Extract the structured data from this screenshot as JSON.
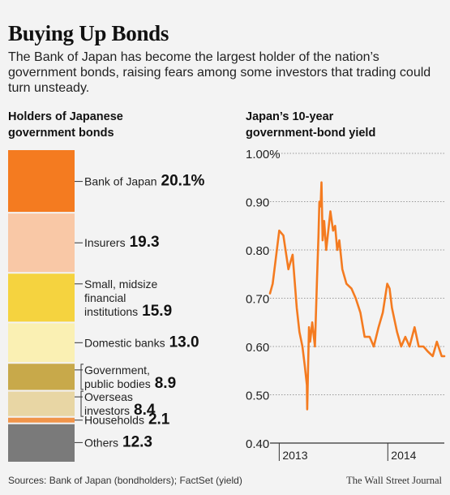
{
  "title": "Buying Up Bonds",
  "subtitle": "The Bank of Japan has become the largest holder of the nation’s government bonds, raising fears among some investors that trading could turn unsteady.",
  "footer": {
    "sources": "Sources: Bank of Japan (bondholders); FactSet (yield)",
    "publisher": "The Wall Street Journal"
  },
  "chart_data": [
    {
      "type": "bar",
      "subtype": "stacked-100",
      "title_lines": [
        "Holders of Japanese",
        "government bonds"
      ],
      "unit": "%",
      "segments": [
        {
          "label_lines": [
            "Bank of Japan"
          ],
          "value": 20.1,
          "value_label": "20.1%",
          "color": "#f47b20"
        },
        {
          "label_lines": [
            "Insurers"
          ],
          "value": 19.3,
          "value_label": "19.3",
          "color": "#f9c8a6"
        },
        {
          "label_lines": [
            "Small, midsize",
            "financial",
            "institutions"
          ],
          "value": 15.9,
          "value_label": "15.9",
          "color": "#f5d33f"
        },
        {
          "label_lines": [
            "Domestic banks"
          ],
          "value": 13.0,
          "value_label": "13.0",
          "color": "#faf0b3"
        },
        {
          "label_lines": [
            "Government,",
            "public bodies"
          ],
          "value": 8.9,
          "value_label": "8.9",
          "color": "#c8a94a"
        },
        {
          "label_lines": [
            "Overseas",
            "investors"
          ],
          "value": 8.4,
          "value_label": "8.4",
          "color": "#e8d6a4"
        },
        {
          "label_lines": [
            "Households"
          ],
          "value": 2.1,
          "value_label": "2.1",
          "color": "#f0944a"
        },
        {
          "label_lines": [
            "Others"
          ],
          "value": 12.3,
          "value_label": "12.3",
          "color": "#7a7a7a"
        }
      ]
    },
    {
      "type": "line",
      "title_lines": [
        "Japan’s 10-year",
        "government-bond yield"
      ],
      "ylim": [
        0.4,
        1.0
      ],
      "yticks": [
        0.4,
        0.5,
        0.6,
        0.7,
        0.8,
        0.9,
        1.0
      ],
      "ytick_labels": [
        "0.40",
        "0.50",
        "0.60",
        "0.70",
        "0.80",
        "0.90",
        "1.00%"
      ],
      "grid": "horizontal",
      "xlim": [
        "2012-12-01",
        "2014-07-10"
      ],
      "xticks": [
        "2013-01-01",
        "2014-01-01"
      ],
      "xtick_labels": [
        "2013",
        "2014"
      ],
      "line_color": "#f47b20",
      "series": [
        {
          "x": [
            "2012-12-01",
            "2012-12-10",
            "2012-12-20",
            "2013-01-01",
            "2013-01-15",
            "2013-02-01",
            "2013-02-15",
            "2013-03-01",
            "2013-03-10",
            "2013-03-20",
            "2013-03-28",
            "2013-04-04",
            "2013-04-05",
            "2013-04-08",
            "2013-04-11",
            "2013-04-15",
            "2013-04-22",
            "2013-05-01",
            "2013-05-08",
            "2013-05-13",
            "2013-05-16",
            "2013-05-20",
            "2013-05-23",
            "2013-05-27",
            "2013-06-01",
            "2013-06-08",
            "2013-06-15",
            "2013-06-22",
            "2013-07-01",
            "2013-07-08",
            "2013-07-15",
            "2013-07-22",
            "2013-08-01",
            "2013-08-15",
            "2013-09-01",
            "2013-09-15",
            "2013-10-01",
            "2013-10-15",
            "2013-11-01",
            "2013-11-15",
            "2013-12-01",
            "2013-12-15",
            "2013-12-30",
            "2014-01-07",
            "2014-01-15",
            "2014-02-01",
            "2014-02-15",
            "2014-03-01",
            "2014-03-15",
            "2014-04-01",
            "2014-04-15",
            "2014-05-01",
            "2014-05-15",
            "2014-06-01",
            "2014-06-15",
            "2014-07-01",
            "2014-07-10"
          ],
          "y": [
            0.71,
            0.73,
            0.78,
            0.84,
            0.83,
            0.76,
            0.79,
            0.68,
            0.63,
            0.6,
            0.56,
            0.52,
            0.47,
            0.56,
            0.64,
            0.61,
            0.65,
            0.6,
            0.74,
            0.83,
            0.9,
            0.89,
            0.94,
            0.82,
            0.86,
            0.8,
            0.84,
            0.88,
            0.84,
            0.85,
            0.8,
            0.82,
            0.76,
            0.73,
            0.72,
            0.7,
            0.67,
            0.62,
            0.62,
            0.6,
            0.64,
            0.67,
            0.73,
            0.72,
            0.68,
            0.63,
            0.6,
            0.62,
            0.6,
            0.64,
            0.6,
            0.6,
            0.59,
            0.58,
            0.61,
            0.58,
            0.58
          ]
        }
      ]
    }
  ]
}
